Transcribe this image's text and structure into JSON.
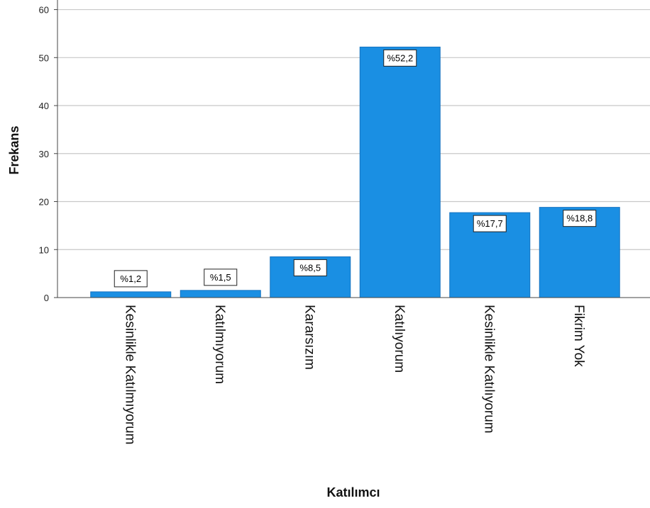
{
  "chart_data": {
    "type": "bar",
    "categories": [
      "Kesinlikle Katılmıyorum",
      "Katılmıyorum",
      "Kararsızım",
      "Katılıyorum",
      "Kesinlikle Katılıyorum",
      "Fikrim Yok"
    ],
    "values": [
      1.2,
      1.5,
      8.5,
      52.2,
      17.7,
      18.8
    ],
    "data_labels": [
      "%1,2",
      "%1,5",
      "%8,5",
      "%52,2",
      "%17,7",
      "%18,8"
    ],
    "xlabel": "Katılımcı",
    "ylabel": "Frekans",
    "ylim": [
      0,
      62
    ],
    "yticks": [
      0,
      10,
      20,
      30,
      40,
      50,
      60
    ],
    "grid": true,
    "bar_color": "#1a8fe3",
    "bar_edge_color": "#1572c0"
  }
}
